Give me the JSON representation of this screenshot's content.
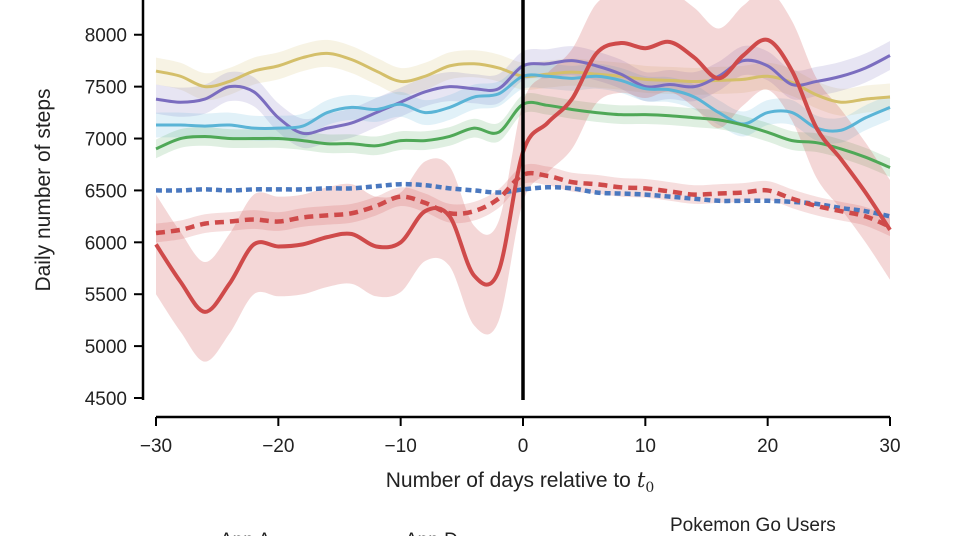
{
  "chart_data": {
    "type": "line",
    "xlabel": "Number of days relative to",
    "xlabel_var": "t",
    "xlabel_sub": "0",
    "ylabel": "Daily number of steps",
    "xlim": [
      -30,
      30
    ],
    "ylim": [
      4500,
      8300
    ],
    "xticks": [
      -30,
      -20,
      -10,
      0,
      10,
      20,
      30
    ],
    "xtick_labels": [
      "−30",
      "−20",
      "−10",
      "0",
      "10",
      "20",
      "30"
    ],
    "yticks": [
      4500,
      5000,
      5500,
      6000,
      6500,
      7000,
      7500,
      8000
    ],
    "ytick_labels": [
      "4500",
      "5000",
      "5500",
      "6000",
      "6500",
      "7000",
      "7500",
      "8000"
    ],
    "vline_x": 0,
    "grid": false,
    "x": [
      -30,
      -28,
      -26,
      -24,
      -22,
      -20,
      -18,
      -16,
      -14,
      -12,
      -10,
      -8,
      -6,
      -4,
      -2,
      0,
      2,
      4,
      6,
      8,
      10,
      12,
      14,
      16,
      18,
      20,
      22,
      24,
      26,
      28,
      30
    ],
    "series": [
      {
        "id": "yellow",
        "name": "App A",
        "color": "#d4bf6a",
        "style": "solid",
        "band": 130,
        "values": [
          7650,
          7600,
          7500,
          7550,
          7650,
          7700,
          7780,
          7820,
          7760,
          7650,
          7550,
          7600,
          7700,
          7720,
          7680,
          7600,
          7620,
          7640,
          7620,
          7600,
          7570,
          7560,
          7550,
          7560,
          7570,
          7600,
          7540,
          7420,
          7350,
          7380,
          7400
        ]
      },
      {
        "id": "purple",
        "name": "App D",
        "color": "#7b6dbf",
        "style": "solid",
        "band": 140,
        "values": [
          7380,
          7350,
          7380,
          7500,
          7450,
          7200,
          7050,
          7100,
          7150,
          7250,
          7350,
          7450,
          7500,
          7480,
          7480,
          7700,
          7720,
          7750,
          7700,
          7620,
          7500,
          7520,
          7500,
          7600,
          7750,
          7700,
          7520,
          7550,
          7600,
          7680,
          7800
        ]
      },
      {
        "id": "cyan",
        "name": "",
        "color": "#5ab4d6",
        "style": "solid",
        "band": 120,
        "values": [
          7130,
          7130,
          7120,
          7130,
          7100,
          7100,
          7120,
          7250,
          7300,
          7280,
          7330,
          7250,
          7300,
          7400,
          7430,
          7600,
          7600,
          7580,
          7600,
          7560,
          7480,
          7470,
          7400,
          7250,
          7140,
          7250,
          7250,
          7100,
          7080,
          7200,
          7300
        ]
      },
      {
        "id": "green",
        "name": "",
        "color": "#4fa857",
        "style": "solid",
        "band": 90,
        "values": [
          6900,
          7000,
          7020,
          7000,
          7000,
          7000,
          6980,
          6950,
          6950,
          6930,
          6980,
          6980,
          7020,
          7100,
          7060,
          7330,
          7320,
          7280,
          7250,
          7230,
          7230,
          7220,
          7200,
          7180,
          7130,
          7060,
          6980,
          6960,
          6900,
          6820,
          6720
        ]
      },
      {
        "id": "red",
        "name": "Pokemon Go Users",
        "color": "#cf4a4a",
        "style": "solid",
        "band": 480,
        "values": [
          5980,
          5620,
          5330,
          5600,
          5980,
          5960,
          5980,
          6050,
          6080,
          5960,
          6000,
          6300,
          6250,
          5680,
          5720,
          6870,
          7150,
          7380,
          7820,
          7920,
          7870,
          7930,
          7780,
          7580,
          7800,
          7950,
          7650,
          7100,
          6800,
          6480,
          6120
        ]
      },
      {
        "id": "red-dashed",
        "name": "",
        "color": "#cf4a4a",
        "style": "dashed",
        "band": 90,
        "values": [
          6090,
          6120,
          6180,
          6200,
          6220,
          6200,
          6240,
          6260,
          6280,
          6350,
          6440,
          6380,
          6280,
          6300,
          6420,
          6650,
          6640,
          6580,
          6560,
          6530,
          6520,
          6490,
          6460,
          6470,
          6480,
          6500,
          6420,
          6350,
          6300,
          6250,
          6150
        ]
      },
      {
        "id": "blue-dashed",
        "name": "",
        "color": "#4a78bf",
        "style": "dashed",
        "band": 0,
        "values": [
          6500,
          6500,
          6510,
          6500,
          6510,
          6510,
          6510,
          6520,
          6520,
          6540,
          6560,
          6550,
          6520,
          6500,
          6480,
          6510,
          6530,
          6520,
          6480,
          6470,
          6460,
          6440,
          6420,
          6400,
          6400,
          6400,
          6390,
          6370,
          6330,
          6300,
          6250
        ]
      }
    ],
    "legend": [
      {
        "label": "App A",
        "color": "#d4bf6a",
        "style": "solid"
      },
      {
        "label": "App D",
        "color": "#7b6dbf",
        "style": "solid"
      },
      {
        "label": "Pokemon Go Users",
        "color": "#cf4a4a",
        "style": "solid"
      }
    ]
  }
}
